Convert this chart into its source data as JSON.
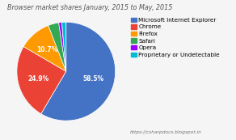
{
  "title": "Browser market shares January, 2015 to May, 2015",
  "labels": [
    "Microsoft Internet Explorer",
    "Chrome",
    "Firefox",
    "Safari",
    "Opera",
    "Proprietary or Undetectable"
  ],
  "values": [
    58.5,
    24.9,
    10.7,
    3.5,
    1.0,
    1.4
  ],
  "colors": [
    "#4472C4",
    "#EA4335",
    "#FF9900",
    "#34A853",
    "#9900FF",
    "#00BCD4"
  ],
  "label_texts": [
    "58.5%",
    "24.9%",
    "10.7%",
    "",
    "",
    ""
  ],
  "background_color": "#f5f5f5",
  "url_text": "https://csharpdocs.blogspot.in",
  "title_fontsize": 5.8,
  "legend_fontsize": 5.2
}
